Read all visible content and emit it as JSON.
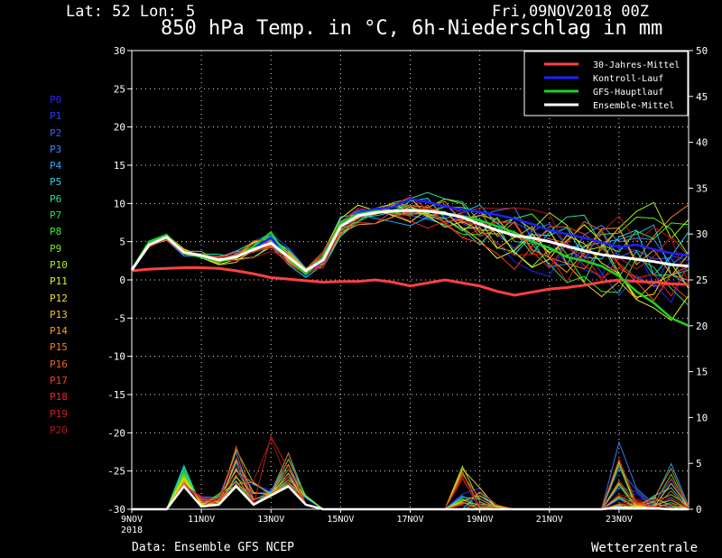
{
  "header": {
    "location": "Lat: 52 Lon: 5",
    "run": "Fri,09NOV2018 00Z",
    "title": "850 hPa Temp. in °C, 6h-Niederschlag in mm"
  },
  "footer": {
    "source": "Data: Ensemble GFS NCEP",
    "brand": "Wetterzentrale"
  },
  "members": [
    {
      "label": "P0",
      "color": "#2020ff"
    },
    {
      "label": "P1",
      "color": "#2a3cff"
    },
    {
      "label": "P2",
      "color": "#2e62ff"
    },
    {
      "label": "P3",
      "color": "#3a86ff"
    },
    {
      "label": "P4",
      "color": "#22b4ff"
    },
    {
      "label": "P5",
      "color": "#20d8e0"
    },
    {
      "label": "P6",
      "color": "#20e0a0"
    },
    {
      "label": "P7",
      "color": "#30e050"
    },
    {
      "label": "P8",
      "color": "#40f030"
    },
    {
      "label": "P9",
      "color": "#70f020"
    },
    {
      "label": "P10",
      "color": "#a8f020"
    },
    {
      "label": "P11",
      "color": "#e0f020"
    },
    {
      "label": "P12",
      "color": "#f0e020"
    },
    {
      "label": "P13",
      "color": "#f0c020"
    },
    {
      "label": "P14",
      "color": "#f0a020"
    },
    {
      "label": "P15",
      "color": "#f08020"
    },
    {
      "label": "P16",
      "color": "#f06020"
    },
    {
      "label": "P17",
      "color": "#f04020"
    },
    {
      "label": "P18",
      "color": "#f02020"
    },
    {
      "label": "P19",
      "color": "#d02020"
    },
    {
      "label": "P20",
      "color": "#b01818"
    }
  ],
  "chart_data": {
    "type": "line",
    "title": "850 hPa Temp. in °C, 6h-Niederschlag in mm",
    "x_day_labels": [
      "9NOV",
      "11NOV",
      "13NOV",
      "15NOV",
      "17NOV",
      "19NOV",
      "21NOV",
      "23NOV"
    ],
    "x_year_label": "2018",
    "x_ticks_days": [
      0,
      2,
      4,
      6,
      8,
      10,
      12,
      14
    ],
    "xlim_days": [
      0,
      16
    ],
    "y_left_ticks": [
      30,
      25,
      20,
      15,
      10,
      5,
      0,
      -5,
      -10,
      -15,
      -20,
      -25,
      -30
    ],
    "y_left_lim": [
      -30,
      30
    ],
    "y_right_ticks": [
      50,
      45,
      40,
      35,
      30,
      25,
      20,
      15,
      10,
      5,
      0
    ],
    "y_right_lim": [
      0,
      50
    ],
    "grid": true,
    "legend_position": "top-right",
    "legend": [
      {
        "label": "30-Jahres-Mittel",
        "color": "#ff4040"
      },
      {
        "label": "Kontroll-Lauf",
        "color": "#2020ff"
      },
      {
        "label": "GFS-Hauptlauf",
        "color": "#20d020"
      },
      {
        "label": "Ensemble-Mittel",
        "color": "#ffffff"
      }
    ],
    "x_days": [
      0,
      0.5,
      1,
      1.5,
      2,
      2.5,
      3,
      3.5,
      4,
      4.5,
      5,
      5.5,
      6,
      6.5,
      7,
      7.5,
      8,
      8.5,
      9,
      9.5,
      10,
      10.5,
      11,
      11.5,
      12,
      12.5,
      13,
      13.5,
      14,
      14.5,
      15,
      15.5,
      16
    ],
    "series": [
      {
        "name": "30-Jahres-Mittel",
        "role": "climate",
        "values": [
          1.2,
          1.4,
          1.5,
          1.6,
          1.6,
          1.5,
          1.2,
          0.8,
          0.3,
          0.1,
          -0.1,
          -0.3,
          -0.2,
          -0.2,
          0.0,
          -0.3,
          -0.8,
          -0.4,
          0.0,
          -0.4,
          -0.8,
          -1.5,
          -2.0,
          -1.6,
          -1.2,
          -1.0,
          -0.7,
          -0.3,
          0.0,
          -0.2,
          -0.3,
          -0.5,
          -0.6
        ]
      },
      {
        "name": "Kontroll-Lauf",
        "role": "control",
        "values": [
          1.3,
          4.8,
          5.8,
          3.6,
          3.2,
          2.5,
          3.0,
          4.2,
          5.5,
          3.0,
          1.0,
          2.5,
          7.0,
          8.8,
          9.3,
          9.5,
          10.6,
          10.2,
          9.6,
          9.2,
          8.9,
          8.5,
          8.0,
          7.3,
          6.5,
          6.0,
          5.5,
          4.9,
          4.3,
          4.6,
          4.0,
          3.5,
          3.2
        ]
      },
      {
        "name": "GFS-Hauptlauf",
        "role": "main",
        "values": [
          1.3,
          5.0,
          5.9,
          3.5,
          3.0,
          2.4,
          2.9,
          4.4,
          6.2,
          2.8,
          0.8,
          3.0,
          7.5,
          8.6,
          9.0,
          8.8,
          9.2,
          9.0,
          8.6,
          8.3,
          7.8,
          7.0,
          6.2,
          5.0,
          4.2,
          3.0,
          2.5,
          1.8,
          0.5,
          -1.5,
          -3.0,
          -5.0,
          -6.0
        ]
      },
      {
        "name": "Ensemble-Mittel",
        "role": "mean",
        "values": [
          1.3,
          4.6,
          5.6,
          3.6,
          3.2,
          2.6,
          3.0,
          4.0,
          4.8,
          3.0,
          1.2,
          2.6,
          7.0,
          8.4,
          8.8,
          9.0,
          9.1,
          9.0,
          8.7,
          8.2,
          7.3,
          6.5,
          5.8,
          5.5,
          5.0,
          4.4,
          3.8,
          3.3,
          3.0,
          2.7,
          2.4,
          2.0,
          1.8
        ]
      }
    ],
    "ensemble_spread_offsets": [
      0,
      0.4,
      0.5,
      0.5,
      0.6,
      0.8,
      0.9,
      1.4,
      2.0,
      1.2,
      0.9,
      1.5,
      1.2,
      1.0,
      1.2,
      1.5,
      1.8,
      2.0,
      2.3,
      2.6,
      3.0,
      3.4,
      3.7,
      4.0,
      4.3,
      4.5,
      4.7,
      4.9,
      5.0,
      5.2,
      5.3,
      5.5,
      5.6
    ],
    "precip_mm_days": [
      0,
      0.5,
      1,
      1.5,
      2,
      2.5,
      3,
      3.5,
      4,
      4.5,
      5,
      5.5,
      6,
      6.5,
      7,
      7.5,
      8,
      8.5,
      9,
      9.5,
      10,
      10.5,
      11,
      11.5,
      12,
      12.5,
      13,
      13.5,
      14,
      14.5,
      15,
      15.5,
      16
    ],
    "precip_mean_mm": [
      0,
      0,
      0,
      2.5,
      0.3,
      0.5,
      2.5,
      0.5,
      1.5,
      2.5,
      0.5,
      0,
      0,
      0,
      0,
      0,
      0,
      0,
      0,
      0,
      0,
      0,
      0,
      0,
      0,
      0,
      0,
      0,
      0.2,
      0.1,
      0.1,
      0,
      0
    ],
    "precip_max_mm": [
      0,
      0,
      0,
      5,
      1.5,
      1.8,
      7,
      4,
      8,
      6.5,
      1.5,
      0,
      0,
      0,
      0,
      0,
      0,
      0,
      0,
      5,
      2.5,
      0.5,
      0,
      0,
      0,
      0,
      0,
      0,
      7.5,
      2.5,
      1.5,
      5.5,
      0.5
    ]
  }
}
